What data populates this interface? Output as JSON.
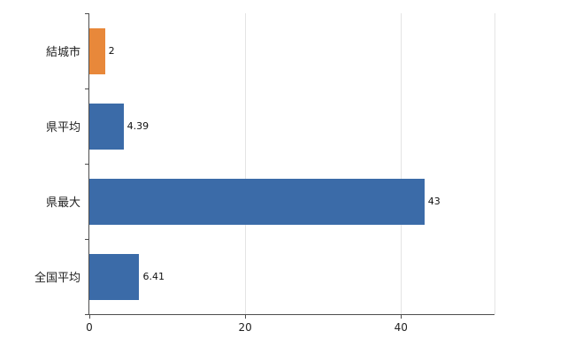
{
  "chart_data": {
    "type": "bar",
    "orientation": "horizontal",
    "title": "",
    "xlabel": "",
    "ylabel": "",
    "categories": [
      "結城市",
      "県平均",
      "県最大",
      "全国平均"
    ],
    "values": [
      2,
      4.39,
      43,
      6.41
    ],
    "value_labels": [
      "2",
      "4.39",
      "43",
      "6.41"
    ],
    "bar_colors": [
      "#e8883a",
      "#3b6ba8",
      "#3b6ba8",
      "#3b6ba8"
    ],
    "xlim": [
      0,
      52
    ],
    "x_ticks": [
      0,
      20,
      40
    ],
    "x_tick_labels": [
      "0",
      "20",
      "40"
    ],
    "grid": "vertical-light",
    "legend": "none"
  },
  "colors": {
    "bar_blue": "#3b6ba8",
    "bar_orange": "#e8883a",
    "axis": "#4d4d4d",
    "gridline": "#e4e4e4",
    "background": "#ffffff",
    "text": "#222222"
  }
}
